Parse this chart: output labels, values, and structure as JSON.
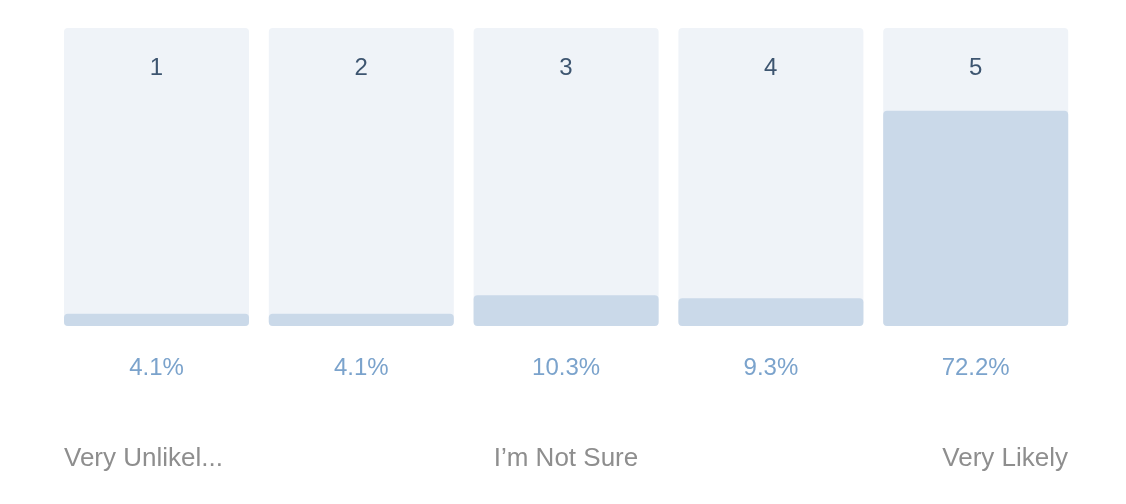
{
  "chart_data": {
    "type": "bar",
    "categories": [
      "1",
      "2",
      "3",
      "4",
      "5"
    ],
    "values": [
      4.1,
      4.1,
      10.3,
      9.3,
      72.2
    ],
    "value_labels": [
      "4.1%",
      "4.1%",
      "10.3%",
      "9.3%",
      "72.2%"
    ],
    "color": "#cad9e9",
    "ylim": [
      0,
      100
    ],
    "annotations": [
      "Very Unlikel...",
      "I’m Not Sure",
      "Very Likely"
    ]
  }
}
